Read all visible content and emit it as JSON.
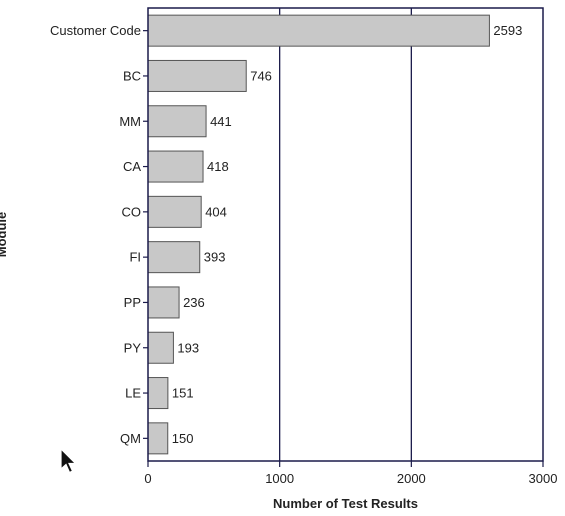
{
  "chart_data": {
    "type": "bar",
    "orientation": "horizontal",
    "categories": [
      "Customer Code",
      "BC",
      "MM",
      "CA",
      "CO",
      "FI",
      "PP",
      "PY",
      "LE",
      "QM"
    ],
    "values": [
      2593,
      746,
      441,
      418,
      404,
      393,
      236,
      193,
      151,
      150
    ],
    "xlabel": "Number of Test Results",
    "ylabel": "Module",
    "xlim": [
      0,
      3000
    ],
    "xticks": [
      0,
      1000,
      2000,
      3000
    ],
    "xgrid": true,
    "legend": "none",
    "bar_color": "#c8c8c8",
    "bar_edge_color": "#555555",
    "axis_color": "#1a1a4a",
    "grid_color": "#1a1a4a"
  },
  "overlay": {
    "cursor_icon": "mouse-pointer-icon"
  }
}
